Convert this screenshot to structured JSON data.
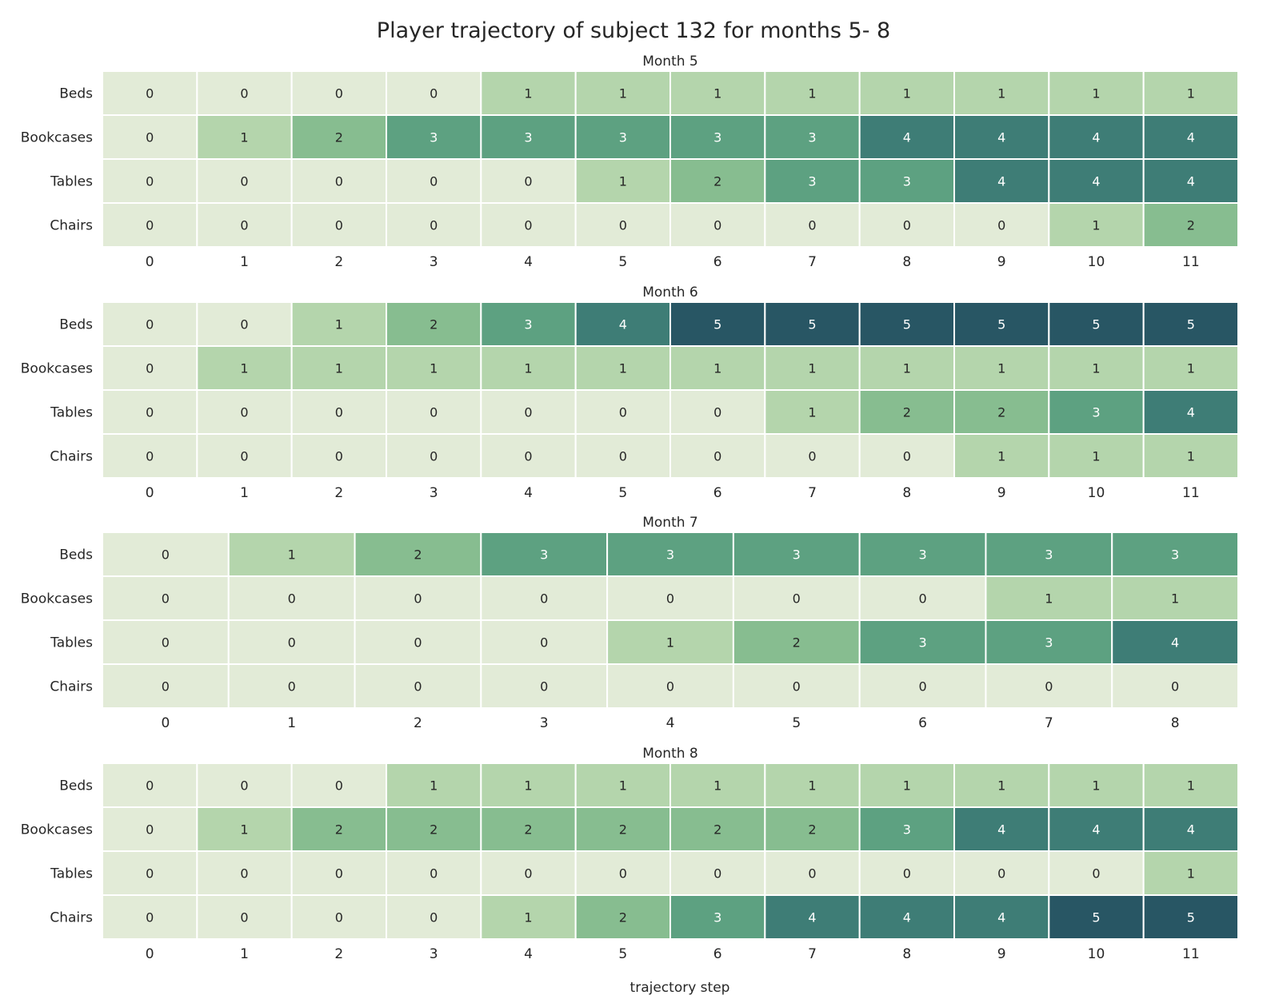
{
  "chart_data": {
    "type": "heatmap",
    "title": "Player trajectory of subject 132 for months 5- 8",
    "xlabel": "trajectory step",
    "rows": [
      "Beds",
      "Bookcases",
      "Tables",
      "Chairs"
    ],
    "colors": [
      "#e2ebd7",
      "#b4d5ac",
      "#87bd90",
      "#5da181",
      "#3e7d76",
      "#285664"
    ],
    "value_range": [
      0,
      5
    ],
    "panels": [
      {
        "title": "Month 5",
        "steps": [
          "0",
          "1",
          "2",
          "3",
          "4",
          "5",
          "6",
          "7",
          "8",
          "9",
          "10",
          "11"
        ],
        "values": [
          [
            0,
            0,
            0,
            0,
            1,
            1,
            1,
            1,
            1,
            1,
            1,
            1
          ],
          [
            0,
            1,
            2,
            3,
            3,
            3,
            3,
            3,
            4,
            4,
            4,
            4
          ],
          [
            0,
            0,
            0,
            0,
            0,
            1,
            2,
            3,
            3,
            4,
            4,
            4
          ],
          [
            0,
            0,
            0,
            0,
            0,
            0,
            0,
            0,
            0,
            0,
            1,
            2
          ]
        ]
      },
      {
        "title": "Month 6",
        "steps": [
          "0",
          "1",
          "2",
          "3",
          "4",
          "5",
          "6",
          "7",
          "8",
          "9",
          "10",
          "11"
        ],
        "values": [
          [
            0,
            0,
            1,
            2,
            3,
            4,
            5,
            5,
            5,
            5,
            5,
            5
          ],
          [
            0,
            1,
            1,
            1,
            1,
            1,
            1,
            1,
            1,
            1,
            1,
            1
          ],
          [
            0,
            0,
            0,
            0,
            0,
            0,
            0,
            1,
            2,
            2,
            3,
            4
          ],
          [
            0,
            0,
            0,
            0,
            0,
            0,
            0,
            0,
            0,
            1,
            1,
            1
          ]
        ]
      },
      {
        "title": "Month 7",
        "steps": [
          "0",
          "1",
          "2",
          "3",
          "4",
          "5",
          "6",
          "7",
          "8"
        ],
        "values": [
          [
            0,
            1,
            2,
            3,
            3,
            3,
            3,
            3,
            3
          ],
          [
            0,
            0,
            0,
            0,
            0,
            0,
            0,
            1,
            1
          ],
          [
            0,
            0,
            0,
            0,
            1,
            2,
            3,
            3,
            4
          ],
          [
            0,
            0,
            0,
            0,
            0,
            0,
            0,
            0,
            0
          ]
        ]
      },
      {
        "title": "Month 8",
        "steps": [
          "0",
          "1",
          "2",
          "3",
          "4",
          "5",
          "6",
          "7",
          "8",
          "9",
          "10",
          "11"
        ],
        "values": [
          [
            0,
            0,
            0,
            1,
            1,
            1,
            1,
            1,
            1,
            1,
            1,
            1
          ],
          [
            0,
            1,
            2,
            2,
            2,
            2,
            2,
            2,
            3,
            4,
            4,
            4
          ],
          [
            0,
            0,
            0,
            0,
            0,
            0,
            0,
            0,
            0,
            0,
            0,
            1
          ],
          [
            0,
            0,
            0,
            0,
            1,
            2,
            3,
            4,
            4,
            4,
            5,
            5
          ]
        ]
      }
    ]
  }
}
